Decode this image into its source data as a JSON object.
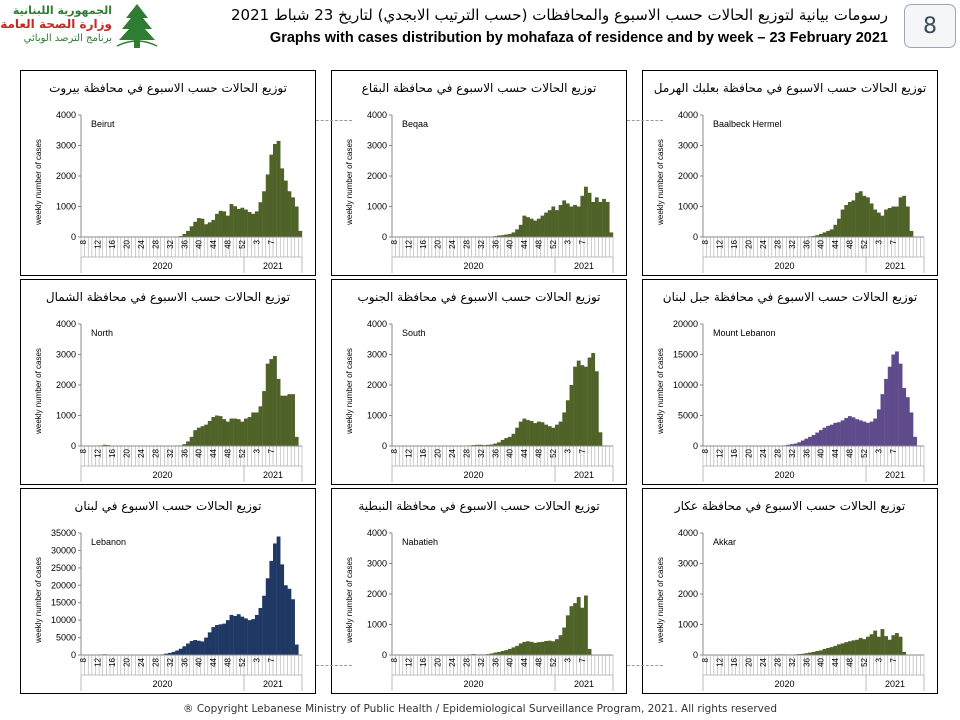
{
  "header": {
    "logo_line1": "الجمهورية اللبنانية",
    "logo_line2": "وزارة الصحة العامة",
    "logo_line3": "برنامج الترصد الوبائي",
    "title_ar": "رسومات بيانية لتوزيع الحالات حسب الاسبوع والمحافظات (حسب الترتيب الابجدي) لتاريخ 23 شباط 2021",
    "title_en": "Graphs with cases distribution by mohafaza of residence and by week – 23 February 2021",
    "page_number": "8"
  },
  "footer": {
    "copyright": "® Copyright Lebanese Ministry of Public Health / Epidemiological Surveillance Program, 2021. All rights reserved"
  },
  "chart_data": [
    {
      "type": "bar",
      "title": "توزيع الحالات حسب الاسبوع في محافظة بيروت",
      "label": "Beirut",
      "color": "#4f6228",
      "ylabel": "weekly number of cases",
      "ylim": [
        0,
        4000
      ],
      "yticks": [
        0,
        1000,
        2000,
        3000,
        4000
      ],
      "xticks": [
        "8",
        "12",
        "16",
        "20",
        "24",
        "28",
        "32",
        "36",
        "40",
        "44",
        "48",
        "52",
        "3",
        "7"
      ],
      "year_labels": [
        "2020",
        "2021"
      ],
      "values": [
        0,
        0,
        0,
        0,
        0,
        0,
        0,
        0,
        0,
        0,
        0,
        0,
        0,
        5,
        0,
        0,
        0,
        0,
        0,
        0,
        0,
        0,
        0,
        0,
        0,
        0,
        10,
        30,
        100,
        200,
        350,
        500,
        620,
        600,
        420,
        480,
        560,
        760,
        860,
        840,
        700,
        1080,
        1010,
        920,
        960,
        900,
        820,
        760,
        840,
        1140,
        1500,
        2050,
        2700,
        3050,
        3150,
        2250,
        1850,
        1500,
        1300,
        1000,
        200
      ]
    },
    {
      "type": "bar",
      "title": "توزيع الحالات حسب الاسبوع في محافظة البقاع",
      "label": "Beqaa",
      "color": "#4f6228",
      "ylabel": "weekly number of cases",
      "ylim": [
        0,
        4000
      ],
      "yticks": [
        0,
        1000,
        2000,
        3000,
        4000
      ],
      "xticks": [
        "8",
        "12",
        "16",
        "20",
        "24",
        "28",
        "32",
        "36",
        "40",
        "44",
        "48",
        "52",
        "3",
        "7"
      ],
      "year_labels": [
        "2020",
        "2021"
      ],
      "values": [
        0,
        0,
        0,
        0,
        0,
        10,
        15,
        10,
        5,
        5,
        0,
        0,
        0,
        0,
        5,
        5,
        5,
        0,
        0,
        0,
        0,
        0,
        0,
        0,
        0,
        0,
        5,
        10,
        30,
        50,
        60,
        80,
        100,
        150,
        250,
        400,
        700,
        650,
        600,
        540,
        600,
        700,
        800,
        880,
        1000,
        880,
        1050,
        1200,
        1100,
        1000,
        1050,
        1000,
        1350,
        1650,
        1450,
        1150,
        1300,
        1150,
        1250,
        1150,
        150
      ]
    },
    {
      "type": "bar",
      "title": "توزيع الحالات حسب الاسبوع في محافظة بعلبك الهرمل",
      "label": "Baalbeck Hermel",
      "color": "#4f6228",
      "ylabel": "weekly number of cases",
      "ylim": [
        0,
        4000
      ],
      "yticks": [
        0,
        1000,
        2000,
        3000,
        4000
      ],
      "xticks": [
        "8",
        "12",
        "16",
        "20",
        "24",
        "28",
        "32",
        "36",
        "40",
        "44",
        "48",
        "52",
        "3",
        "7"
      ],
      "year_labels": [
        "2020",
        "2021"
      ],
      "values": [
        0,
        0,
        0,
        0,
        0,
        0,
        10,
        10,
        5,
        0,
        0,
        0,
        0,
        0,
        0,
        0,
        0,
        0,
        5,
        5,
        0,
        0,
        0,
        0,
        0,
        0,
        0,
        5,
        10,
        20,
        30,
        60,
        100,
        150,
        200,
        250,
        400,
        600,
        900,
        1050,
        1150,
        1200,
        1450,
        1500,
        1350,
        1300,
        1100,
        900,
        800,
        700,
        900,
        950,
        1000,
        1000,
        1300,
        1350,
        1000,
        200
      ]
    },
    {
      "type": "bar",
      "title": "توزيع الحالات حسب الاسبوع في محافظة الشمال",
      "label": "North",
      "color": "#4f6228",
      "ylabel": "weekly number of cases",
      "ylim": [
        0,
        4000
      ],
      "yticks": [
        0,
        1000,
        2000,
        3000,
        4000
      ],
      "xticks": [
        "8",
        "12",
        "16",
        "20",
        "24",
        "28",
        "32",
        "36",
        "40",
        "44",
        "48",
        "52",
        "3",
        "7"
      ],
      "year_labels": [
        "2020",
        "2021"
      ],
      "values": [
        0,
        0,
        0,
        5,
        10,
        20,
        40,
        30,
        10,
        5,
        0,
        0,
        0,
        0,
        0,
        0,
        0,
        0,
        0,
        0,
        0,
        0,
        0,
        0,
        0,
        0,
        5,
        20,
        60,
        150,
        300,
        520,
        600,
        650,
        700,
        820,
        950,
        1000,
        980,
        880,
        800,
        900,
        900,
        880,
        800,
        900,
        950,
        1100,
        1100,
        1300,
        1800,
        2700,
        2850,
        2950,
        2200,
        1650,
        1650,
        1700,
        1700,
        300
      ]
    },
    {
      "type": "bar",
      "title": "توزيع الحالات حسب الاسبوع في محافظة الجنوب",
      "label": "South",
      "color": "#4f6228",
      "ylabel": "weekly number of cases",
      "ylim": [
        0,
        4000
      ],
      "yticks": [
        0,
        1000,
        2000,
        3000,
        4000
      ],
      "xticks": [
        "8",
        "12",
        "16",
        "20",
        "24",
        "28",
        "32",
        "36",
        "40",
        "44",
        "48",
        "52",
        "3",
        "7"
      ],
      "year_labels": [
        "2020",
        "2021"
      ],
      "values": [
        0,
        0,
        0,
        5,
        5,
        5,
        5,
        5,
        0,
        0,
        0,
        0,
        0,
        0,
        0,
        0,
        0,
        0,
        0,
        5,
        10,
        20,
        30,
        40,
        40,
        30,
        40,
        50,
        80,
        120,
        200,
        260,
        300,
        400,
        600,
        800,
        900,
        850,
        820,
        750,
        800,
        780,
        700,
        650,
        600,
        700,
        800,
        1100,
        1500,
        2000,
        2600,
        2800,
        2650,
        2600,
        2900,
        3050,
        2450,
        450
      ]
    },
    {
      "type": "bar",
      "title": "توزيع الحالات حسب الاسبوع في محافظة جبل لبنان",
      "label": "Mount Lebanon",
      "color": "#5f4a8b",
      "ylabel": "weekly number of cases",
      "ylim": [
        0,
        20000
      ],
      "yticks": [
        0,
        5000,
        10000,
        15000,
        20000
      ],
      "xticks": [
        "8",
        "12",
        "16",
        "20",
        "24",
        "28",
        "32",
        "36",
        "40",
        "44",
        "48",
        "52",
        "3",
        "7"
      ],
      "year_labels": [
        "2020",
        "2021"
      ],
      "values": [
        0,
        0,
        0,
        10,
        20,
        30,
        40,
        20,
        10,
        10,
        0,
        0,
        0,
        0,
        0,
        0,
        0,
        0,
        0,
        0,
        0,
        50,
        100,
        200,
        300,
        400,
        600,
        900,
        1200,
        1500,
        1800,
        2200,
        2600,
        3000,
        3300,
        3500,
        3800,
        3900,
        4200,
        4600,
        4900,
        4700,
        4400,
        4200,
        4000,
        3800,
        4000,
        4500,
        6000,
        8500,
        11000,
        13000,
        15000,
        15500,
        13500,
        9500,
        8000,
        5500,
        1500
      ]
    },
    {
      "type": "bar",
      "title": "توزيع الحالات حسب الاسبوع في لبنان",
      "label": "Lebanon",
      "color": "#1f3864",
      "ylabel": "weekly number of cases",
      "ylim": [
        0,
        35000
      ],
      "yticks": [
        0,
        5000,
        10000,
        15000,
        20000,
        25000,
        30000,
        35000
      ],
      "xticks": [
        "8",
        "12",
        "16",
        "20",
        "24",
        "28",
        "32",
        "36",
        "40",
        "44",
        "48",
        "52",
        "3",
        "7"
      ],
      "year_labels": [
        "2020",
        "2021"
      ],
      "values": [
        0,
        0,
        0,
        50,
        100,
        150,
        200,
        100,
        50,
        30,
        0,
        0,
        0,
        0,
        0,
        0,
        0,
        0,
        0,
        20,
        50,
        100,
        200,
        400,
        600,
        900,
        1300,
        1800,
        2500,
        3300,
        4000,
        4300,
        4100,
        3900,
        5000,
        6500,
        8000,
        8600,
        8800,
        9000,
        10000,
        11500,
        11200,
        11700,
        11000,
        10500,
        10000,
        10300,
        11500,
        13500,
        17000,
        22000,
        27000,
        32000,
        34000,
        26000,
        20000,
        19000,
        16000,
        3000
      ]
    },
    {
      "type": "bar",
      "title": "توزيع الحالات حسب الاسبوع في محافظة النبطية",
      "label": "Nabatieh",
      "color": "#4f6228",
      "ylabel": "weekly number of cases",
      "ylim": [
        0,
        4000
      ],
      "yticks": [
        0,
        1000,
        2000,
        3000,
        4000
      ],
      "xticks": [
        "8",
        "12",
        "16",
        "20",
        "24",
        "28",
        "32",
        "36",
        "40",
        "44",
        "48",
        "52",
        "3",
        "7"
      ],
      "year_labels": [
        "2020",
        "2021"
      ],
      "values": [
        0,
        0,
        0,
        0,
        5,
        5,
        5,
        0,
        0,
        0,
        0,
        0,
        0,
        0,
        0,
        0,
        0,
        0,
        0,
        5,
        10,
        20,
        30,
        20,
        20,
        20,
        30,
        50,
        80,
        100,
        130,
        160,
        200,
        250,
        300,
        380,
        430,
        450,
        430,
        400,
        420,
        430,
        460,
        470,
        450,
        520,
        650,
        900,
        1300,
        1600,
        1700,
        1900,
        1550,
        1950,
        200
      ]
    },
    {
      "type": "bar",
      "title": "توزيع الحالات حسب الاسبوع في محافظة عكار",
      "label": "Akkar",
      "color": "#4f6228",
      "ylabel": "weekly number of cases",
      "ylim": [
        0,
        4000
      ],
      "yticks": [
        0,
        1000,
        2000,
        3000,
        4000
      ],
      "xticks": [
        "8",
        "12",
        "16",
        "20",
        "24",
        "28",
        "32",
        "36",
        "40",
        "44",
        "48",
        "52",
        "3",
        "7"
      ],
      "year_labels": [
        "2020",
        "2021"
      ],
      "values": [
        0,
        0,
        0,
        0,
        0,
        5,
        10,
        10,
        5,
        0,
        0,
        0,
        0,
        0,
        0,
        0,
        0,
        0,
        5,
        10,
        20,
        20,
        20,
        10,
        10,
        20,
        30,
        40,
        60,
        80,
        100,
        130,
        150,
        200,
        230,
        260,
        300,
        350,
        380,
        420,
        450,
        480,
        500,
        560,
        520,
        600,
        680,
        800,
        600,
        850,
        620,
        500,
        650,
        720,
        600,
        100
      ]
    }
  ]
}
